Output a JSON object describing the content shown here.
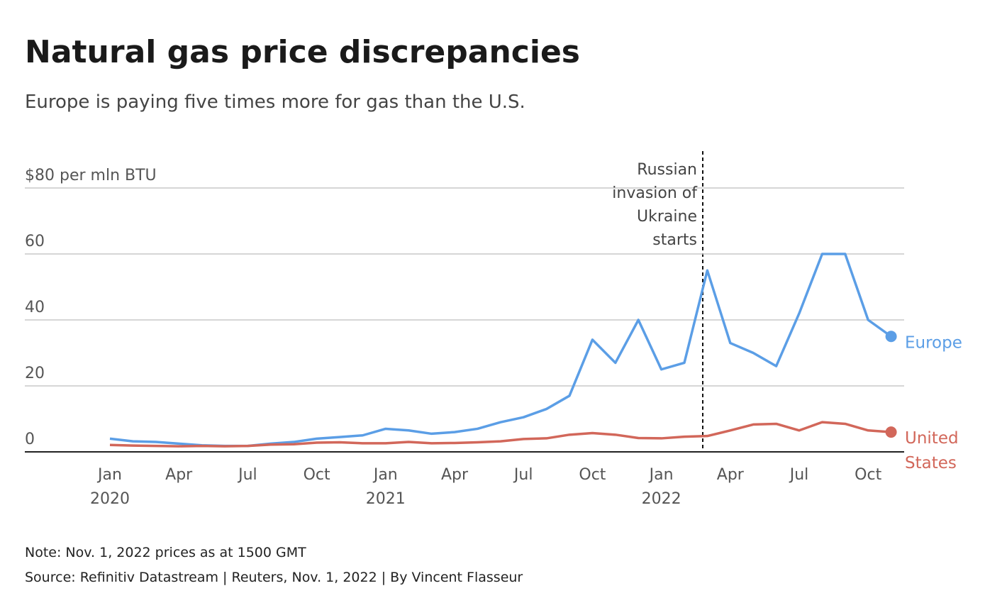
{
  "chart_data": {
    "type": "line",
    "title": "Natural gas price discrepancies",
    "subtitle": "Europe is paying five times more for gas than the U.S.",
    "x": [
      "2020-01",
      "2020-02",
      "2020-03",
      "2020-04",
      "2020-05",
      "2020-06",
      "2020-07",
      "2020-08",
      "2020-09",
      "2020-10",
      "2020-11",
      "2020-12",
      "2021-01",
      "2021-02",
      "2021-03",
      "2021-04",
      "2021-05",
      "2021-06",
      "2021-07",
      "2021-08",
      "2021-09",
      "2021-10",
      "2021-11",
      "2021-12",
      "2022-01",
      "2022-02",
      "2022-03",
      "2022-04",
      "2022-05",
      "2022-06",
      "2022-07",
      "2022-08",
      "2022-09",
      "2022-10",
      "2022-11"
    ],
    "series": [
      {
        "name": "Europe",
        "color": "#5b9ee6",
        "values": [
          4,
          3.2,
          3,
          2.5,
          2,
          1.8,
          1.8,
          2.5,
          3,
          4,
          4.5,
          5,
          7,
          6.5,
          5.5,
          6,
          7,
          9,
          10.5,
          13,
          17,
          34,
          27,
          40,
          25,
          27,
          55,
          33,
          30,
          26,
          42,
          60,
          60,
          40,
          35
        ]
      },
      {
        "name": "United States",
        "color": "#d2675a",
        "values": [
          2.1,
          1.9,
          1.8,
          1.7,
          1.8,
          1.7,
          1.8,
          2.2,
          2.3,
          2.8,
          2.9,
          2.6,
          2.6,
          3,
          2.6,
          2.7,
          2.9,
          3.2,
          3.9,
          4.1,
          5.2,
          5.7,
          5.2,
          4.2,
          4.1,
          4.6,
          4.8,
          6.5,
          8.3,
          8.5,
          6.5,
          9,
          8.5,
          6.5,
          6
        ]
      }
    ],
    "ylim": [
      0,
      80
    ],
    "yticks": [
      0,
      20,
      40,
      60,
      {
        "value": 80,
        "label": "$80 per mln BTU"
      }
    ],
    "xticks": [
      {
        "value": "2020-01",
        "label": "Jan",
        "year": "2020"
      },
      {
        "value": "2020-04",
        "label": "Apr"
      },
      {
        "value": "2020-07",
        "label": "Jul"
      },
      {
        "value": "2020-10",
        "label": "Oct"
      },
      {
        "value": "2021-01",
        "label": "Jan",
        "year": "2021"
      },
      {
        "value": "2021-04",
        "label": "Apr"
      },
      {
        "value": "2021-07",
        "label": "Jul"
      },
      {
        "value": "2021-10",
        "label": "Oct"
      },
      {
        "value": "2022-01",
        "label": "Jan",
        "year": "2022"
      },
      {
        "value": "2022-04",
        "label": "Apr"
      },
      {
        "value": "2022-07",
        "label": "Jul"
      },
      {
        "value": "2022-10",
        "label": "Oct"
      }
    ],
    "grid": true,
    "annotation": [
      "Russian",
      "invasion of",
      "Ukraine",
      "starts"
    ],
    "note": "Note: Nov. 1, 2022 prices as at 1500 GMT",
    "source": "Source: Refinitiv Datastream | Reuters, Nov. 1, 2022 | By Vincent Flasseur"
  }
}
